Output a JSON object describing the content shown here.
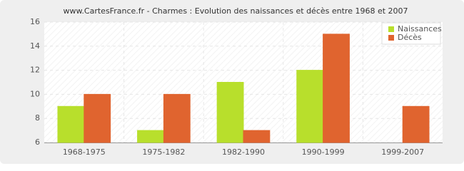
{
  "chart_data": {
    "type": "bar",
    "title": "www.CartesFrance.fr - Charmes : Evolution des naissances et décès entre 1968 et 2007",
    "categories": [
      "1968-1975",
      "1975-1982",
      "1982-1990",
      "1990-1999",
      "1999-2007"
    ],
    "series": [
      {
        "name": "Naissances",
        "color": "#b8df2c",
        "values": [
          9,
          7,
          11,
          12,
          6
        ]
      },
      {
        "name": "Décès",
        "color": "#e0642f",
        "values": [
          10,
          10,
          7,
          15,
          9
        ]
      }
    ],
    "ylim": [
      6,
      16
    ],
    "yticks": [
      6,
      8,
      10,
      12,
      14,
      16
    ],
    "grid": true,
    "legend": "top-right"
  }
}
